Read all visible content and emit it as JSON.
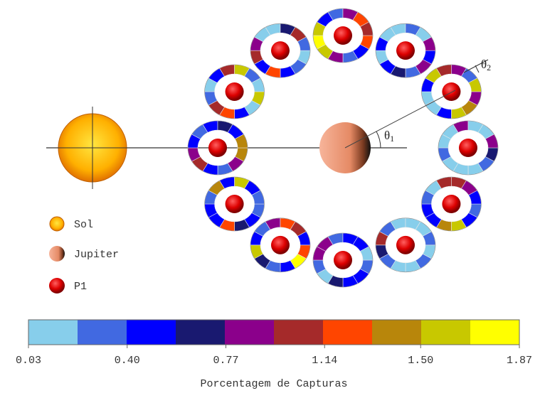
{
  "legend": [
    "Sol",
    "Jupiter",
    "P1"
  ],
  "angles": [
    {
      "symbol": "θ",
      "subscript": "1"
    },
    {
      "symbol": "θ",
      "subscript": "2"
    }
  ],
  "colorbar": {
    "title": "Porcentagem de Capturas",
    "colors": [
      "#87ceeb",
      "#4169e1",
      "#0000ff",
      "#191970",
      "#8b008b",
      "#a52a2a",
      "#ff4500",
      "#b8860b",
      "#c8c800",
      "#ffff00"
    ],
    "ticks": [
      {
        "value": 0.03,
        "label": "0.03"
      },
      {
        "value": 0.4,
        "label": "0.40"
      },
      {
        "value": 0.77,
        "label": "0.77"
      },
      {
        "value": 1.14,
        "label": "1.14"
      },
      {
        "value": 1.5,
        "label": "1.50"
      },
      {
        "value": 1.87,
        "label": "1.87"
      }
    ],
    "lim": [
      0.03,
      1.87
    ]
  },
  "rings": [
    {
      "segments": [
        3,
        1,
        0,
        0,
        0,
        1,
        0,
        0,
        4,
        0,
        0,
        4
      ]
    },
    {
      "segments": [
        4,
        7,
        8,
        2,
        0,
        0,
        2,
        8,
        5,
        4,
        1,
        8
      ]
    },
    {
      "segments": [
        2,
        4,
        1,
        3,
        2,
        0,
        2,
        0,
        0,
        1,
        0,
        4
      ]
    },
    {
      "segments": [
        6,
        2,
        1,
        4,
        8,
        9,
        8,
        2,
        1,
        4,
        6,
        5
      ]
    },
    {
      "segments": [
        0,
        1,
        2,
        6,
        2,
        5,
        4,
        0,
        0,
        3,
        5,
        1
      ]
    },
    {
      "segments": [
        8,
        0,
        2,
        6,
        5,
        1,
        0,
        2,
        5,
        8,
        1,
        0
      ]
    },
    {
      "segments": [
        7,
        4,
        1,
        2,
        5,
        4,
        2,
        1,
        2,
        3,
        2,
        7
      ]
    },
    {
      "segments": [
        1,
        2,
        3,
        6,
        2,
        2,
        1,
        7,
        2,
        8,
        2,
        1
      ]
    },
    {
      "segments": [
        6,
        9,
        2,
        1,
        3,
        8,
        2,
        1,
        4,
        6,
        5,
        2
      ]
    },
    {
      "segments": [
        1,
        2,
        2,
        3,
        0,
        1,
        4,
        4,
        1,
        2,
        2,
        0
      ]
    },
    {
      "segments": [
        0,
        1,
        0,
        0,
        1,
        3,
        5,
        1,
        0,
        0,
        0,
        1
      ]
    },
    {
      "segments": [
        1,
        2,
        8,
        7,
        2,
        2,
        1,
        0,
        5,
        5,
        4,
        2
      ]
    }
  ]
}
